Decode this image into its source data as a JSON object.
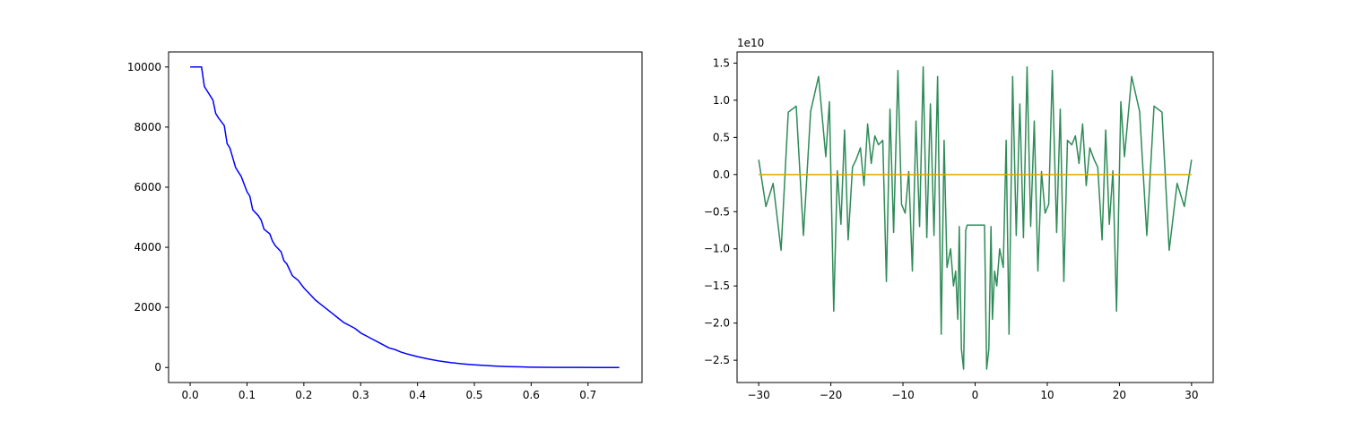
{
  "chart_data": [
    {
      "type": "line",
      "title": "",
      "xlabel": "",
      "ylabel": "",
      "xlim": [
        -0.038,
        0.795
      ],
      "ylim": [
        -500,
        10500
      ],
      "xticks": [
        0.0,
        0.1,
        0.2,
        0.3,
        0.4,
        0.5,
        0.6,
        0.7
      ],
      "xtick_labels": [
        "0.0",
        "0.1",
        "0.2",
        "0.3",
        "0.4",
        "0.5",
        "0.6",
        "0.7"
      ],
      "yticks": [
        0,
        2000,
        4000,
        6000,
        8000,
        10000
      ],
      "ytick_labels": [
        "0",
        "2000",
        "4000",
        "6000",
        "8000",
        "10000"
      ],
      "grid": false,
      "series": [
        {
          "color": "#0000ff",
          "x": [
            0.0,
            0.02,
            0.025,
            0.03,
            0.04,
            0.045,
            0.05,
            0.06,
            0.065,
            0.07,
            0.08,
            0.085,
            0.09,
            0.1,
            0.105,
            0.11,
            0.12,
            0.125,
            0.13,
            0.14,
            0.145,
            0.15,
            0.16,
            0.165,
            0.17,
            0.18,
            0.19,
            0.2,
            0.21,
            0.22,
            0.23,
            0.24,
            0.25,
            0.26,
            0.27,
            0.28,
            0.29,
            0.3,
            0.31,
            0.32,
            0.33,
            0.34,
            0.35,
            0.36,
            0.37,
            0.38,
            0.39,
            0.4,
            0.42,
            0.44,
            0.46,
            0.48,
            0.5,
            0.52,
            0.54,
            0.56,
            0.58,
            0.6,
            0.62,
            0.65,
            0.68,
            0.72,
            0.755
          ],
          "y": [
            10000,
            10000,
            9350,
            9200,
            8900,
            8450,
            8300,
            8050,
            7450,
            7300,
            6650,
            6500,
            6350,
            5850,
            5700,
            5250,
            5050,
            4900,
            4600,
            4450,
            4200,
            4050,
            3850,
            3550,
            3450,
            3050,
            2900,
            2650,
            2450,
            2250,
            2100,
            1950,
            1800,
            1650,
            1500,
            1400,
            1300,
            1150,
            1050,
            950,
            850,
            750,
            650,
            600,
            520,
            460,
            410,
            360,
            280,
            210,
            160,
            120,
            90,
            65,
            45,
            30,
            20,
            12,
            8,
            4,
            2,
            1,
            0
          ]
        }
      ]
    },
    {
      "type": "line",
      "title": "",
      "xlabel": "",
      "ylabel": "",
      "y_offset_label": "1e10",
      "xlim": [
        -33,
        33
      ],
      "ylim": [
        -2.8,
        1.65
      ],
      "xticks": [
        -30,
        -20,
        -10,
        0,
        10,
        20,
        30
      ],
      "xtick_labels": [
        "−30",
        "−20",
        "−10",
        "0",
        "10",
        "20",
        "30"
      ],
      "yticks": [
        -2.5,
        -2.0,
        -1.5,
        -1.0,
        -0.5,
        0.0,
        0.5,
        1.0,
        1.5
      ],
      "ytick_labels": [
        "−2.5",
        "−2.0",
        "−1.5",
        "−1.0",
        "−0.5",
        "0.0",
        "0.5",
        "1.0",
        "1.5"
      ],
      "grid": false,
      "series": [
        {
          "color": "#2e8b57",
          "x": [
            -30.0,
            -29.0,
            -28.0,
            -26.9,
            -25.9,
            -24.8,
            -23.8,
            -22.8,
            -21.7,
            -20.7,
            -20.2,
            -19.6,
            -19.1,
            -18.6,
            -18.1,
            -17.6,
            -17.0,
            -16.5,
            -15.9,
            -15.4,
            -14.9,
            -14.4,
            -13.9,
            -13.4,
            -12.8,
            -12.3,
            -11.8,
            -11.3,
            -10.7,
            -10.2,
            -9.7,
            -9.2,
            -8.7,
            -8.2,
            -7.7,
            -7.2,
            -6.7,
            -6.2,
            -5.7,
            -5.2,
            -4.7,
            -4.3,
            -3.9,
            -3.4,
            -3.0,
            -2.7,
            -2.4,
            -2.2,
            -1.9,
            -1.6,
            -1.3,
            -1.1,
            -0.9,
            -0.6,
            -0.3,
            0.0,
            0.3,
            0.6,
            0.9,
            1.1,
            1.3,
            1.6,
            1.9,
            2.2,
            2.4,
            2.7,
            3.0,
            3.4,
            3.9,
            4.3,
            4.7,
            5.2,
            5.7,
            6.2,
            6.7,
            7.2,
            7.7,
            8.2,
            8.7,
            9.2,
            9.7,
            10.2,
            10.7,
            11.3,
            11.8,
            12.3,
            12.8,
            13.4,
            13.9,
            14.4,
            14.9,
            15.4,
            15.9,
            16.5,
            17.0,
            17.6,
            18.1,
            18.6,
            19.1,
            19.6,
            20.2,
            20.7,
            21.7,
            22.8,
            23.8,
            24.8,
            25.9,
            26.9,
            28.0,
            29.0,
            30.0
          ],
          "y": [
            0.2,
            -0.43,
            -0.12,
            -1.02,
            0.84,
            0.92,
            -0.82,
            0.85,
            1.32,
            0.24,
            0.98,
            -1.84,
            0.05,
            -0.67,
            0.6,
            -0.88,
            0.1,
            0.2,
            0.36,
            -0.15,
            0.68,
            0.15,
            0.52,
            0.4,
            0.46,
            -1.44,
            0.88,
            -0.78,
            1.4,
            -0.4,
            -0.52,
            0.04,
            -1.3,
            0.72,
            -0.7,
            1.45,
            -0.85,
            0.95,
            -0.82,
            1.32,
            -2.15,
            0.46,
            -1.25,
            -1.0,
            -1.5,
            -1.3,
            -1.95,
            -0.7,
            -2.35,
            -2.62,
            -0.75,
            -0.68,
            -0.68,
            -0.68,
            -0.68,
            -0.68,
            -0.68,
            -0.68,
            -0.68,
            -0.68,
            -0.68,
            -2.62,
            -2.35,
            -0.7,
            -1.95,
            -1.3,
            -1.5,
            -1.0,
            -1.25,
            0.46,
            -2.15,
            1.32,
            -0.82,
            0.95,
            -0.85,
            1.45,
            -0.7,
            0.72,
            -1.3,
            0.04,
            -0.52,
            -0.4,
            1.4,
            -0.78,
            0.88,
            -1.44,
            0.46,
            0.4,
            0.52,
            0.15,
            0.68,
            -0.15,
            0.36,
            0.2,
            0.1,
            -0.88,
            0.6,
            -0.67,
            0.05,
            -1.84,
            0.98,
            0.24,
            1.32,
            0.85,
            -0.82,
            0.92,
            0.84,
            -1.02,
            -0.12,
            -0.43,
            0.2
          ]
        },
        {
          "color": "#e0a800",
          "x": [
            -30,
            30
          ],
          "y": [
            0,
            0
          ]
        }
      ]
    }
  ]
}
